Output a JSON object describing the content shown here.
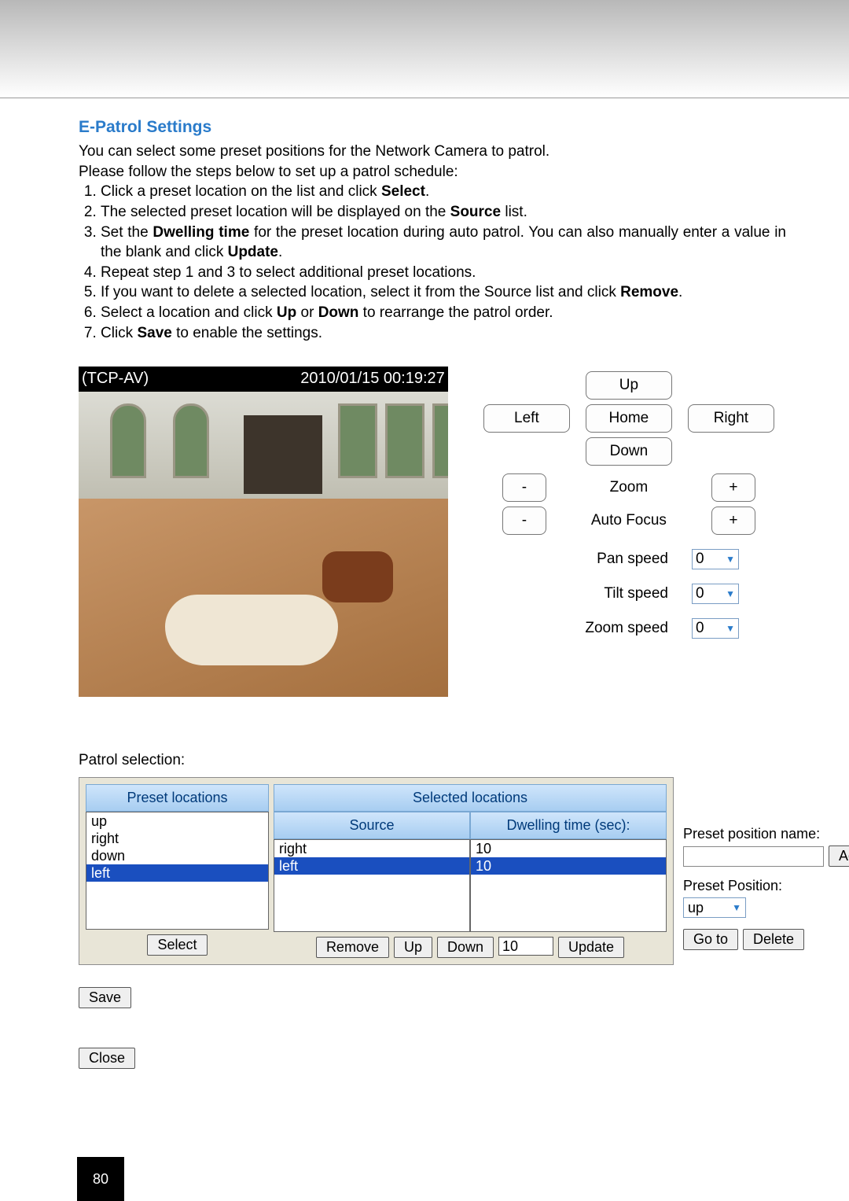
{
  "page_number": "80",
  "section_title": "E-Patrol Settings",
  "intro_lines": [
    "You can select some preset positions for the Network Camera to patrol.",
    "Please follow the steps below to set up a patrol schedule:"
  ],
  "steps": [
    "Click a preset location on the list and click <b>Select</b>.",
    "The selected preset location will be displayed on the <b>Source</b> list.",
    "Set the <b>Dwelling time</b> for the preset location during auto patrol. You can also manually enter a value in the blank and click <b>Update</b>.",
    "Repeat step 1 and 3 to select additional preset locations.",
    "If you want to delete a selected location, select it from the Source list and click <b>Remove</b>.",
    "Select a location and click <b>Up</b> or <b>Down</b> to rearrange the patrol order.",
    "Click <b>Save</b> to enable the settings."
  ],
  "video": {
    "label_left": "(TCP-AV)",
    "label_right": "2010/01/15 00:19:27"
  },
  "ptz": {
    "up": "Up",
    "left": "Left",
    "home": "Home",
    "right": "Right",
    "down": "Down",
    "minus": "-",
    "plus": "+",
    "zoom": "Zoom",
    "autofocus": "Auto Focus",
    "pan_label": "Pan speed",
    "tilt_label": "Tilt speed",
    "zoom_label": "Zoom speed",
    "pan_val": "0",
    "tilt_val": "0",
    "zoom_val": "0"
  },
  "patrol": {
    "title": "Patrol selection:",
    "preset_header": "Preset locations",
    "selected_header": "Selected locations",
    "source_header": "Source",
    "dwell_header": "Dwelling time (sec):",
    "preset_items": [
      {
        "label": "up",
        "sel": false
      },
      {
        "label": "right",
        "sel": false
      },
      {
        "label": "down",
        "sel": false
      },
      {
        "label": "left",
        "sel": true
      }
    ],
    "source_items": [
      {
        "label": "right",
        "sel": false
      },
      {
        "label": "left",
        "sel": true
      }
    ],
    "dwell_items": [
      {
        "label": "10",
        "sel": false
      },
      {
        "label": "10",
        "sel": true
      }
    ],
    "buttons": {
      "select": "Select",
      "remove": "Remove",
      "up": "Up",
      "down": "Down",
      "update": "Update",
      "dwell_val": "10",
      "save": "Save",
      "close": "Close"
    }
  },
  "preset_pos": {
    "name_label": "Preset position name:",
    "add": "Add",
    "pos_label": "Preset Position:",
    "pos_value": "up",
    "goto": "Go to",
    "delete": "Delete"
  }
}
